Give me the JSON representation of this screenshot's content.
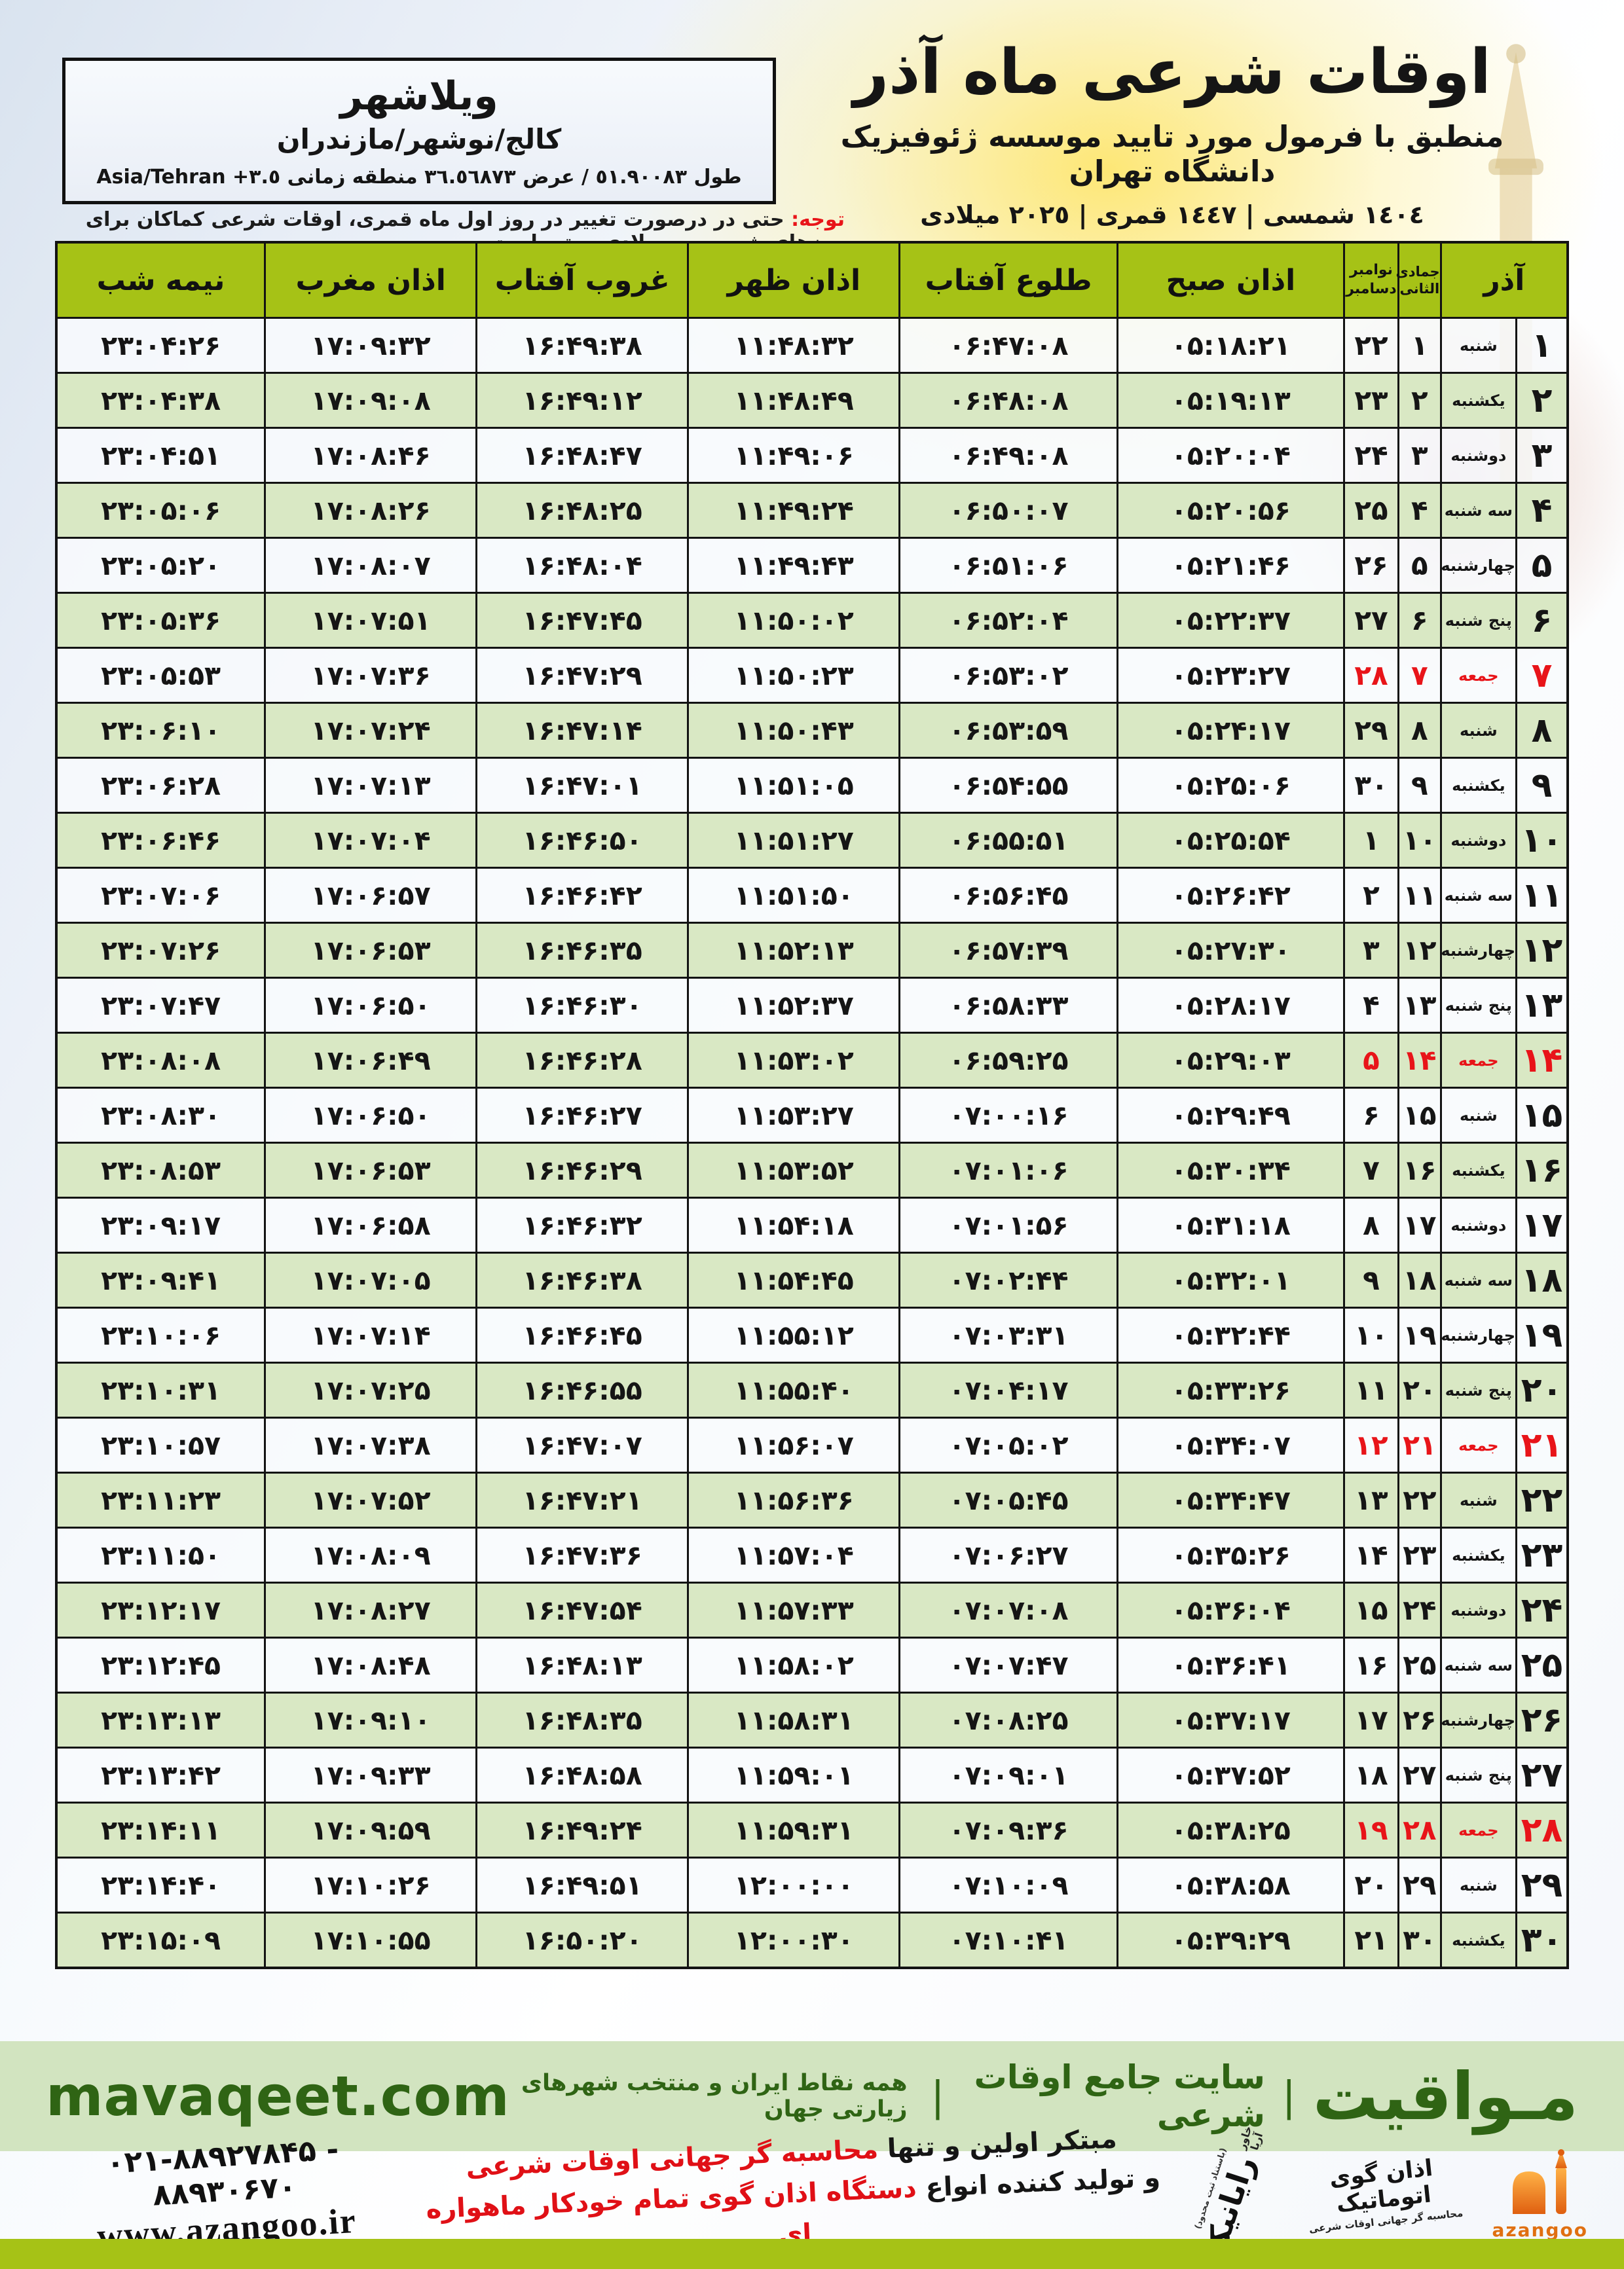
{
  "header": {
    "title": "اوقات شرعی ماه آذر",
    "subtitle": "منطبق با فرمول مورد تایید موسسه ژئوفیزیک دانشگاه تهران",
    "dates_line": "١٤٠٤ شمسی | ١٤٤٧ قمری | ٢٠٢٥ میلادی",
    "location": {
      "city": "ویلاشهر",
      "region": "کالج/نوشهر/مازندران",
      "coords_prefix": "طول ٥١.٩٠٠٨٣ / عرض ٣٦.٥٦٨٧٣ منطقه زمانی",
      "tz_offset": "+٣.٥",
      "tz_name": "Asia/Tehran"
    },
    "notice_label": "توجه:",
    "notice_text": "حتی در درصورت تغییر در روز اول ماه قمری، اوقات شرعی کماکان برای روزهای شمسی و میلادی معتبر است."
  },
  "table": {
    "columns": {
      "azar": "آذر",
      "hijri_month": "جمادی الثانی",
      "greg_month_top": "نوامبر",
      "greg_month_bottom": "دسامبر",
      "sobh": "اذان صبح",
      "tolu": "طلوع آفتاب",
      "zohr": "اذان ظهر",
      "ghorub": "غروب آفتاب",
      "maghreb": "اذان مغرب",
      "nime": "نیمه شب"
    },
    "rows": [
      {
        "d": "۱",
        "w": "شنبه",
        "h": "۱",
        "g": "۲۲",
        "sobh": "۰۵:۱۸:۲۱",
        "tolu": "۰۶:۴۷:۰۸",
        "zohr": "۱۱:۴۸:۳۲",
        "ghorub": "۱۶:۴۹:۳۸",
        "maghreb": "۱۷:۰۹:۳۲",
        "nime": "۲۳:۰۴:۲۶",
        "friday": false
      },
      {
        "d": "۲",
        "w": "یکشنبه",
        "h": "۲",
        "g": "۲۳",
        "sobh": "۰۵:۱۹:۱۳",
        "tolu": "۰۶:۴۸:۰۸",
        "zohr": "۱۱:۴۸:۴۹",
        "ghorub": "۱۶:۴۹:۱۲",
        "maghreb": "۱۷:۰۹:۰۸",
        "nime": "۲۳:۰۴:۳۸",
        "friday": false
      },
      {
        "d": "۳",
        "w": "دوشنبه",
        "h": "۳",
        "g": "۲۴",
        "sobh": "۰۵:۲۰:۰۴",
        "tolu": "۰۶:۴۹:۰۸",
        "zohr": "۱۱:۴۹:۰۶",
        "ghorub": "۱۶:۴۸:۴۷",
        "maghreb": "۱۷:۰۸:۴۶",
        "nime": "۲۳:۰۴:۵۱",
        "friday": false
      },
      {
        "d": "۴",
        "w": "سه شنبه",
        "h": "۴",
        "g": "۲۵",
        "sobh": "۰۵:۲۰:۵۶",
        "tolu": "۰۶:۵۰:۰۷",
        "zohr": "۱۱:۴۹:۲۴",
        "ghorub": "۱۶:۴۸:۲۵",
        "maghreb": "۱۷:۰۸:۲۶",
        "nime": "۲۳:۰۵:۰۶",
        "friday": false
      },
      {
        "d": "۵",
        "w": "چهارشنبه",
        "h": "۵",
        "g": "۲۶",
        "sobh": "۰۵:۲۱:۴۶",
        "tolu": "۰۶:۵۱:۰۶",
        "zohr": "۱۱:۴۹:۴۳",
        "ghorub": "۱۶:۴۸:۰۴",
        "maghreb": "۱۷:۰۸:۰۷",
        "nime": "۲۳:۰۵:۲۰",
        "friday": false
      },
      {
        "d": "۶",
        "w": "پنج شنبه",
        "h": "۶",
        "g": "۲۷",
        "sobh": "۰۵:۲۲:۳۷",
        "tolu": "۰۶:۵۲:۰۴",
        "zohr": "۱۱:۵۰:۰۲",
        "ghorub": "۱۶:۴۷:۴۵",
        "maghreb": "۱۷:۰۷:۵۱",
        "nime": "۲۳:۰۵:۳۶",
        "friday": false
      },
      {
        "d": "۷",
        "w": "جمعه",
        "h": "۷",
        "g": "۲۸",
        "sobh": "۰۵:۲۳:۲۷",
        "tolu": "۰۶:۵۳:۰۲",
        "zohr": "۱۱:۵۰:۲۳",
        "ghorub": "۱۶:۴۷:۲۹",
        "maghreb": "۱۷:۰۷:۳۶",
        "nime": "۲۳:۰۵:۵۳",
        "friday": true
      },
      {
        "d": "۸",
        "w": "شنبه",
        "h": "۸",
        "g": "۲۹",
        "sobh": "۰۵:۲۴:۱۷",
        "tolu": "۰۶:۵۳:۵۹",
        "zohr": "۱۱:۵۰:۴۳",
        "ghorub": "۱۶:۴۷:۱۴",
        "maghreb": "۱۷:۰۷:۲۴",
        "nime": "۲۳:۰۶:۱۰",
        "friday": false
      },
      {
        "d": "۹",
        "w": "یکشنبه",
        "h": "۹",
        "g": "۳۰",
        "sobh": "۰۵:۲۵:۰۶",
        "tolu": "۰۶:۵۴:۵۵",
        "zohr": "۱۱:۵۱:۰۵",
        "ghorub": "۱۶:۴۷:۰۱",
        "maghreb": "۱۷:۰۷:۱۳",
        "nime": "۲۳:۰۶:۲۸",
        "friday": false
      },
      {
        "d": "۱۰",
        "w": "دوشنبه",
        "h": "۱۰",
        "g": "۱",
        "sobh": "۰۵:۲۵:۵۴",
        "tolu": "۰۶:۵۵:۵۱",
        "zohr": "۱۱:۵۱:۲۷",
        "ghorub": "۱۶:۴۶:۵۰",
        "maghreb": "۱۷:۰۷:۰۴",
        "nime": "۲۳:۰۶:۴۶",
        "friday": false
      },
      {
        "d": "۱۱",
        "w": "سه شنبه",
        "h": "۱۱",
        "g": "۲",
        "sobh": "۰۵:۲۶:۴۲",
        "tolu": "۰۶:۵۶:۴۵",
        "zohr": "۱۱:۵۱:۵۰",
        "ghorub": "۱۶:۴۶:۴۲",
        "maghreb": "۱۷:۰۶:۵۷",
        "nime": "۲۳:۰۷:۰۶",
        "friday": false
      },
      {
        "d": "۱۲",
        "w": "چهارشنبه",
        "h": "۱۲",
        "g": "۳",
        "sobh": "۰۵:۲۷:۳۰",
        "tolu": "۰۶:۵۷:۳۹",
        "zohr": "۱۱:۵۲:۱۳",
        "ghorub": "۱۶:۴۶:۳۵",
        "maghreb": "۱۷:۰۶:۵۳",
        "nime": "۲۳:۰۷:۲۶",
        "friday": false
      },
      {
        "d": "۱۳",
        "w": "پنج شنبه",
        "h": "۱۳",
        "g": "۴",
        "sobh": "۰۵:۲۸:۱۷",
        "tolu": "۰۶:۵۸:۳۳",
        "zohr": "۱۱:۵۲:۳۷",
        "ghorub": "۱۶:۴۶:۳۰",
        "maghreb": "۱۷:۰۶:۵۰",
        "nime": "۲۳:۰۷:۴۷",
        "friday": false
      },
      {
        "d": "۱۴",
        "w": "جمعه",
        "h": "۱۴",
        "g": "۵",
        "sobh": "۰۵:۲۹:۰۳",
        "tolu": "۰۶:۵۹:۲۵",
        "zohr": "۱۱:۵۳:۰۲",
        "ghorub": "۱۶:۴۶:۲۸",
        "maghreb": "۱۷:۰۶:۴۹",
        "nime": "۲۳:۰۸:۰۸",
        "friday": true
      },
      {
        "d": "۱۵",
        "w": "شنبه",
        "h": "۱۵",
        "g": "۶",
        "sobh": "۰۵:۲۹:۴۹",
        "tolu": "۰۷:۰۰:۱۶",
        "zohr": "۱۱:۵۳:۲۷",
        "ghorub": "۱۶:۴۶:۲۷",
        "maghreb": "۱۷:۰۶:۵۰",
        "nime": "۲۳:۰۸:۳۰",
        "friday": false
      },
      {
        "d": "۱۶",
        "w": "یکشنبه",
        "h": "۱۶",
        "g": "۷",
        "sobh": "۰۵:۳۰:۳۴",
        "tolu": "۰۷:۰۱:۰۶",
        "zohr": "۱۱:۵۳:۵۲",
        "ghorub": "۱۶:۴۶:۲۹",
        "maghreb": "۱۷:۰۶:۵۳",
        "nime": "۲۳:۰۸:۵۳",
        "friday": false
      },
      {
        "d": "۱۷",
        "w": "دوشنبه",
        "h": "۱۷",
        "g": "۸",
        "sobh": "۰۵:۳۱:۱۸",
        "tolu": "۰۷:۰۱:۵۶",
        "zohr": "۱۱:۵۴:۱۸",
        "ghorub": "۱۶:۴۶:۳۲",
        "maghreb": "۱۷:۰۶:۵۸",
        "nime": "۲۳:۰۹:۱۷",
        "friday": false
      },
      {
        "d": "۱۸",
        "w": "سه شنبه",
        "h": "۱۸",
        "g": "۹",
        "sobh": "۰۵:۳۲:۰۱",
        "tolu": "۰۷:۰۲:۴۴",
        "zohr": "۱۱:۵۴:۴۵",
        "ghorub": "۱۶:۴۶:۳۸",
        "maghreb": "۱۷:۰۷:۰۵",
        "nime": "۲۳:۰۹:۴۱",
        "friday": false
      },
      {
        "d": "۱۹",
        "w": "چهارشنبه",
        "h": "۱۹",
        "g": "۱۰",
        "sobh": "۰۵:۳۲:۴۴",
        "tolu": "۰۷:۰۳:۳۱",
        "zohr": "۱۱:۵۵:۱۲",
        "ghorub": "۱۶:۴۶:۴۵",
        "maghreb": "۱۷:۰۷:۱۴",
        "nime": "۲۳:۱۰:۰۶",
        "friday": false
      },
      {
        "d": "۲۰",
        "w": "پنج شنبه",
        "h": "۲۰",
        "g": "۱۱",
        "sobh": "۰۵:۳۳:۲۶",
        "tolu": "۰۷:۰۴:۱۷",
        "zohr": "۱۱:۵۵:۴۰",
        "ghorub": "۱۶:۴۶:۵۵",
        "maghreb": "۱۷:۰۷:۲۵",
        "nime": "۲۳:۱۰:۳۱",
        "friday": false
      },
      {
        "d": "۲۱",
        "w": "جمعه",
        "h": "۲۱",
        "g": "۱۲",
        "sobh": "۰۵:۳۴:۰۷",
        "tolu": "۰۷:۰۵:۰۲",
        "zohr": "۱۱:۵۶:۰۷",
        "ghorub": "۱۶:۴۷:۰۷",
        "maghreb": "۱۷:۰۷:۳۸",
        "nime": "۲۳:۱۰:۵۷",
        "friday": true
      },
      {
        "d": "۲۲",
        "w": "شنبه",
        "h": "۲۲",
        "g": "۱۳",
        "sobh": "۰۵:۳۴:۴۷",
        "tolu": "۰۷:۰۵:۴۵",
        "zohr": "۱۱:۵۶:۳۶",
        "ghorub": "۱۶:۴۷:۲۱",
        "maghreb": "۱۷:۰۷:۵۲",
        "nime": "۲۳:۱۱:۲۳",
        "friday": false
      },
      {
        "d": "۲۳",
        "w": "یکشنبه",
        "h": "۲۳",
        "g": "۱۴",
        "sobh": "۰۵:۳۵:۲۶",
        "tolu": "۰۷:۰۶:۲۷",
        "zohr": "۱۱:۵۷:۰۴",
        "ghorub": "۱۶:۴۷:۳۶",
        "maghreb": "۱۷:۰۸:۰۹",
        "nime": "۲۳:۱۱:۵۰",
        "friday": false
      },
      {
        "d": "۲۴",
        "w": "دوشنبه",
        "h": "۲۴",
        "g": "۱۵",
        "sobh": "۰۵:۳۶:۰۴",
        "tolu": "۰۷:۰۷:۰۸",
        "zohr": "۱۱:۵۷:۳۳",
        "ghorub": "۱۶:۴۷:۵۴",
        "maghreb": "۱۷:۰۸:۲۷",
        "nime": "۲۳:۱۲:۱۷",
        "friday": false
      },
      {
        "d": "۲۵",
        "w": "سه شنبه",
        "h": "۲۵",
        "g": "۱۶",
        "sobh": "۰۵:۳۶:۴۱",
        "tolu": "۰۷:۰۷:۴۷",
        "zohr": "۱۱:۵۸:۰۲",
        "ghorub": "۱۶:۴۸:۱۳",
        "maghreb": "۱۷:۰۸:۴۸",
        "nime": "۲۳:۱۲:۴۵",
        "friday": false
      },
      {
        "d": "۲۶",
        "w": "چهارشنبه",
        "h": "۲۶",
        "g": "۱۷",
        "sobh": "۰۵:۳۷:۱۷",
        "tolu": "۰۷:۰۸:۲۵",
        "zohr": "۱۱:۵۸:۳۱",
        "ghorub": "۱۶:۴۸:۳۵",
        "maghreb": "۱۷:۰۹:۱۰",
        "nime": "۲۳:۱۳:۱۳",
        "friday": false
      },
      {
        "d": "۲۷",
        "w": "پنج شنبه",
        "h": "۲۷",
        "g": "۱۸",
        "sobh": "۰۵:۳۷:۵۲",
        "tolu": "۰۷:۰۹:۰۱",
        "zohr": "۱۱:۵۹:۰۱",
        "ghorub": "۱۶:۴۸:۵۸",
        "maghreb": "۱۷:۰۹:۳۳",
        "nime": "۲۳:۱۳:۴۲",
        "friday": false
      },
      {
        "d": "۲۸",
        "w": "جمعه",
        "h": "۲۸",
        "g": "۱۹",
        "sobh": "۰۵:۳۸:۲۵",
        "tolu": "۰۷:۰۹:۳۶",
        "zohr": "۱۱:۵۹:۳۱",
        "ghorub": "۱۶:۴۹:۲۴",
        "maghreb": "۱۷:۰۹:۵۹",
        "nime": "۲۳:۱۴:۱۱",
        "friday": true
      },
      {
        "d": "۲۹",
        "w": "شنبه",
        "h": "۲۹",
        "g": "۲۰",
        "sobh": "۰۵:۳۸:۵۸",
        "tolu": "۰۷:۱۰:۰۹",
        "zohr": "۱۲:۰۰:۰۰",
        "ghorub": "۱۶:۴۹:۵۱",
        "maghreb": "۱۷:۱۰:۲۶",
        "nime": "۲۳:۱۴:۴۰",
        "friday": false
      },
      {
        "d": "۳۰",
        "w": "یکشنبه",
        "h": "۳۰",
        "g": "۲۱",
        "sobh": "۰۵:۳۹:۲۹",
        "tolu": "۰۷:۱۰:۴۱",
        "zohr": "۱۲:۰۰:۳۰",
        "ghorub": "۱۶:۵۰:۲۰",
        "maghreb": "۱۷:۱۰:۵۵",
        "nime": "۲۳:۱۵:۰۹",
        "friday": false
      }
    ]
  },
  "footer": {
    "mavaqeet": {
      "brand": "مـواقیت",
      "sep": "|",
      "site_label": "سایت جامع اوقات شرعی",
      "tagline": "همه نقاط ایران و منتخب شهرهای زیارتی جهان",
      "url": "mavaqeet.com"
    },
    "credits": {
      "phones": "۰۲۱-۸۸۹۲۷۸۴۵ - ۸۸۹۳۰۶۷۰",
      "website": "www.azangoo.ir",
      "slogan_line1_black": "مبتکر اولین و تنها ",
      "slogan_line1_red": "محاسبه گر جهانی اوقات شرعی",
      "slogan_line2_black": "و تولید کننده انواع ",
      "slogan_line2_red": "دستگاه اذان گوی تمام خودکار ماهواره ای",
      "rayanik_name": "رایانیک",
      "rayanik_sub": "خاور آریا",
      "rayanik_note": "(باستناد ثبت محدود)",
      "azangoo_title": "اذان گوی اتوماتیک",
      "azangoo_sub": "محاسبه گر جهانی اوقات شرعی",
      "azangoo_latin": "azangoo"
    }
  },
  "colors": {
    "header_green": "#a6c216",
    "row_green": "#d9e8c4",
    "friday_red": "#e81419",
    "band_green": "#d2e4c0",
    "footer_text_green": "#2f6414",
    "azangoo_orange": "#e07011"
  }
}
